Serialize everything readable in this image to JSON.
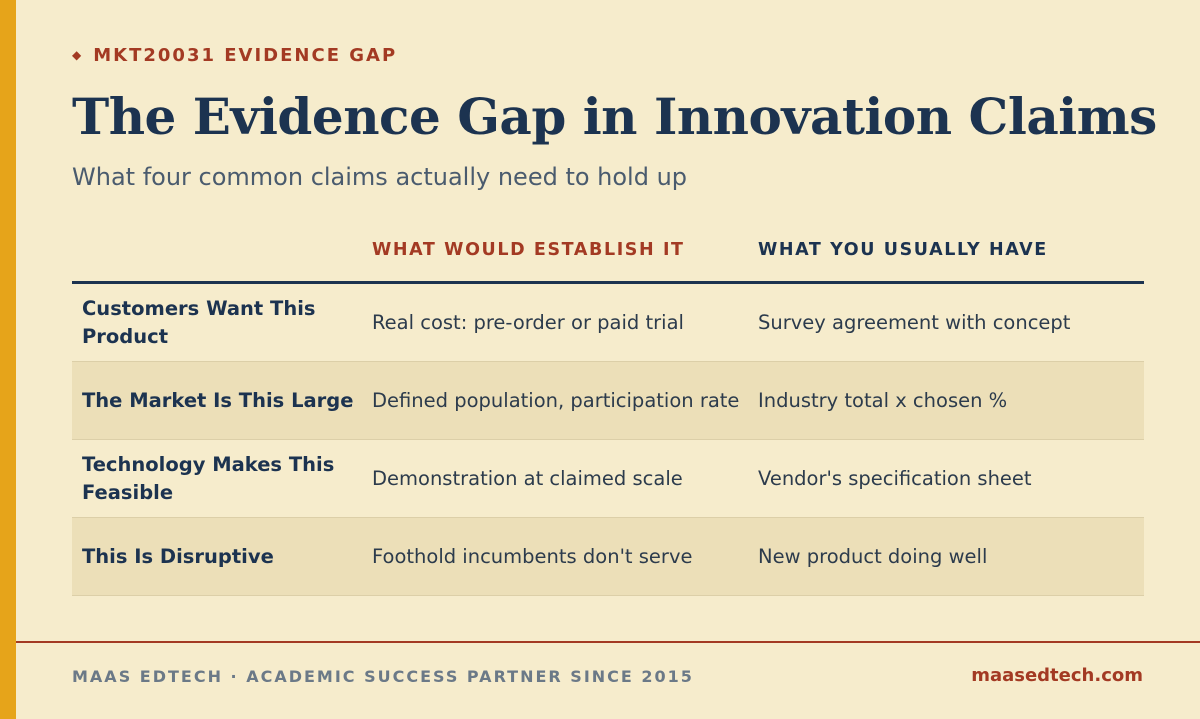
{
  "header": {
    "eyebrow_icon": "diamond-icon",
    "eyebrow_glyph": "◆",
    "eyebrow": "MKT20031 EVIDENCE GAP",
    "title": "The Evidence Gap in Innovation Claims",
    "subtitle": "What four common claims actually need to hold up"
  },
  "table": {
    "columns": [
      "",
      "WHAT WOULD ESTABLISH IT",
      "WHAT YOU USUALLY HAVE"
    ],
    "rows": [
      {
        "claim": "Customers Want This Product",
        "establish": "Real cost: pre-order or paid trial",
        "usually": "Survey agreement with concept"
      },
      {
        "claim": "The Market Is This Large",
        "establish": "Defined population, participation rate",
        "usually": "Industry total x chosen %"
      },
      {
        "claim": "Technology Makes This Feasible",
        "establish": "Demonstration at claimed scale",
        "usually": "Vendor's specification sheet"
      },
      {
        "claim": "This Is Disruptive",
        "establish": "Foothold incumbents don't serve",
        "usually": "New product doing well"
      }
    ]
  },
  "footer": {
    "left": "MAAS EDTECH · ACADEMIC SUCCESS PARTNER SINCE 2015",
    "right": "maasedtech.com"
  },
  "colors": {
    "background": "#f6eccc",
    "accent_bar": "#e6a41a",
    "brand_red": "#a33a23",
    "navy": "#1c3350",
    "alt_row": "#ecdfb8"
  }
}
